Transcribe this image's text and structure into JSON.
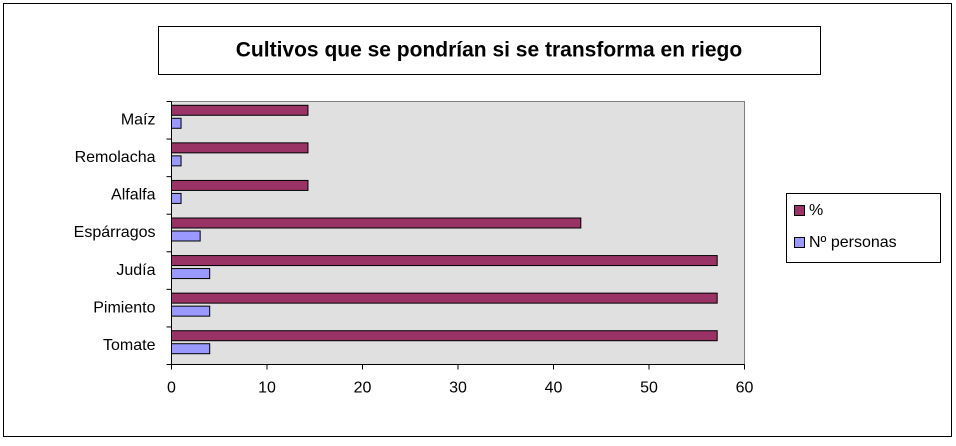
{
  "chart_data": {
    "type": "hbar",
    "title": "Cultivos que se pondrían si se transforma en riego",
    "categories": [
      "Maíz",
      "Remolacha",
      "Alfalfa",
      "Espárragos",
      "Judía",
      "Pimiento",
      "Tomate"
    ],
    "series": [
      {
        "name": "%",
        "color": "#993366",
        "values": [
          14.29,
          14.29,
          14.29,
          42.86,
          57.14,
          57.14,
          57.14
        ]
      },
      {
        "name": "Nº personas",
        "color": "#9999ff",
        "values": [
          1,
          1,
          1,
          3,
          4,
          4,
          4
        ]
      }
    ],
    "xlim": [
      0,
      60
    ],
    "xticks": [
      0,
      10,
      20,
      30,
      40,
      50,
      60
    ],
    "legend": "right"
  }
}
